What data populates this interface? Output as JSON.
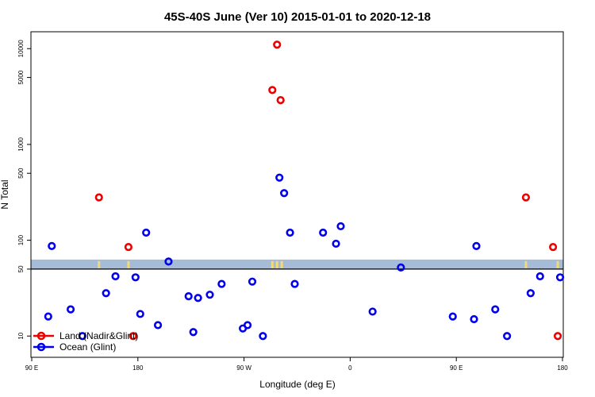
{
  "chart_data": {
    "type": "scatter",
    "title": "45S-40S June (Ver 10)   2015-01-01 to 2020-12-18",
    "xlabel": "Longitude (deg E)",
    "ylabel": "N Total",
    "x_scale": "longitude, 90 E through 180 wrapping to 180",
    "y_scale": "log",
    "xlim": [
      "90 E",
      "180"
    ],
    "ylim": [
      6,
      15000
    ],
    "x_ticks": [
      {
        "label": "90 E",
        "lon": 90
      },
      {
        "label": "180",
        "lon": 180
      },
      {
        "label": "90 W",
        "lon": -90
      },
      {
        "label": "0",
        "lon": 0
      },
      {
        "label": "90 E",
        "lon": 90
      },
      {
        "label": "180",
        "lon": 180
      }
    ],
    "y_ticks": [
      10,
      50,
      100,
      500,
      1000,
      5000,
      10000
    ],
    "reference_line": 50,
    "land_band_color": "#a5bcd9",
    "land_mark_color": "#f7d872",
    "legend_position": "bottom-left",
    "series": [
      {
        "name": "Land (Nadir&Glint)",
        "color": "#ee0000",
        "points": [
          {
            "lon": 147,
            "y": 280
          },
          {
            "lon": 172,
            "y": 85
          },
          {
            "lon": 176,
            "y": 10
          },
          {
            "lon": -62,
            "y": 11000
          },
          {
            "lon": -66,
            "y": 3700
          },
          {
            "lon": -59,
            "y": 2900
          },
          {
            "lon": 149,
            "y": 280
          },
          {
            "lon": 172,
            "y": 85
          },
          {
            "lon": 176,
            "y": 10
          }
        ]
      },
      {
        "name": "Ocean (Glint)",
        "color": "#0000ee",
        "points": [
          {
            "lon": 104,
            "y": 16
          },
          {
            "lon": 107,
            "y": 87
          },
          {
            "lon": 123,
            "y": 19
          },
          {
            "lon": 133,
            "y": 10
          },
          {
            "lon": 153,
            "y": 28
          },
          {
            "lon": 161,
            "y": 42
          },
          {
            "lon": 178,
            "y": 41
          },
          {
            "lon": -178,
            "y": 17
          },
          {
            "lon": -173,
            "y": 120
          },
          {
            "lon": -163,
            "y": 13
          },
          {
            "lon": -154,
            "y": 60
          },
          {
            "lon": -137,
            "y": 26
          },
          {
            "lon": -133,
            "y": 11
          },
          {
            "lon": -129,
            "y": 25
          },
          {
            "lon": -119,
            "y": 27
          },
          {
            "lon": -109,
            "y": 35
          },
          {
            "lon": -91,
            "y": 12
          },
          {
            "lon": -87,
            "y": 13
          },
          {
            "lon": -83,
            "y": 37
          },
          {
            "lon": -74,
            "y": 10
          },
          {
            "lon": -60,
            "y": 450
          },
          {
            "lon": -56,
            "y": 310
          },
          {
            "lon": -51,
            "y": 120
          },
          {
            "lon": -47,
            "y": 35
          },
          {
            "lon": -23,
            "y": 120
          },
          {
            "lon": -12,
            "y": 92
          },
          {
            "lon": -8,
            "y": 140
          },
          {
            "lon": 19,
            "y": 18
          },
          {
            "lon": 43,
            "y": 52
          },
          {
            "lon": 87,
            "y": 16
          },
          {
            "lon": 105,
            "y": 15
          },
          {
            "lon": 107,
            "y": 87
          },
          {
            "lon": 123,
            "y": 19
          },
          {
            "lon": 133,
            "y": 10
          },
          {
            "lon": 153,
            "y": 28
          },
          {
            "lon": 161,
            "y": 42
          },
          {
            "lon": 178,
            "y": 41
          }
        ]
      }
    ]
  }
}
